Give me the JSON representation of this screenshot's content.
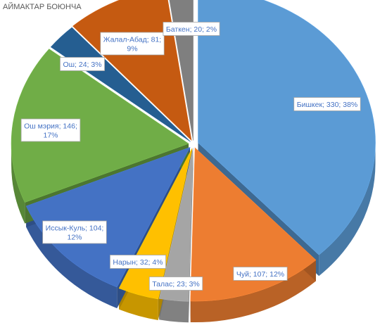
{
  "chart_data": {
    "type": "pie",
    "title": "АЙМАКТАР БОЮНЧА",
    "style": "3d-exploded",
    "slices": [
      {
        "name": "Бишкек",
        "value": 330,
        "percent": "38%",
        "color": "#5b9bd5",
        "label_lines": [
          "Бишкек; 330; 38%"
        ]
      },
      {
        "name": "Чуй",
        "value": 107,
        "percent": "12%",
        "color": "#ed7d31",
        "label_lines": [
          "Чуй; 107; 12%"
        ]
      },
      {
        "name": "Талас",
        "value": 23,
        "percent": "3%",
        "color": "#a5a5a5",
        "label_lines": [
          "Талас; 23; 3%"
        ]
      },
      {
        "name": "Нарын",
        "value": 32,
        "percent": "4%",
        "color": "#ffc000",
        "label_lines": [
          "Нарын; 32; 4%"
        ]
      },
      {
        "name": "Иссык-Куль",
        "value": 104,
        "percent": "12%",
        "color": "#4472c4",
        "label_lines": [
          "Иссык-Куль; 104;",
          "12%"
        ]
      },
      {
        "name": "Ош мэрия",
        "value": 146,
        "percent": "17%",
        "color": "#70ad47",
        "label_lines": [
          "Ош мэрия; 146;",
          "17%"
        ]
      },
      {
        "name": "Ош",
        "value": 24,
        "percent": "3%",
        "color": "#255e91",
        "label_lines": [
          "Ош; 24; 3%"
        ]
      },
      {
        "name": "Жалал-Абад",
        "value": 81,
        "percent": "9%",
        "color": "#c55a11",
        "label_lines": [
          "Жалал-Абад; 81;",
          "9%"
        ]
      },
      {
        "name": "Баткен",
        "value": 20,
        "percent": "2%",
        "color": "#7f7f7f",
        "label_lines": [
          "Баткен; 20; 2%"
        ]
      }
    ]
  }
}
